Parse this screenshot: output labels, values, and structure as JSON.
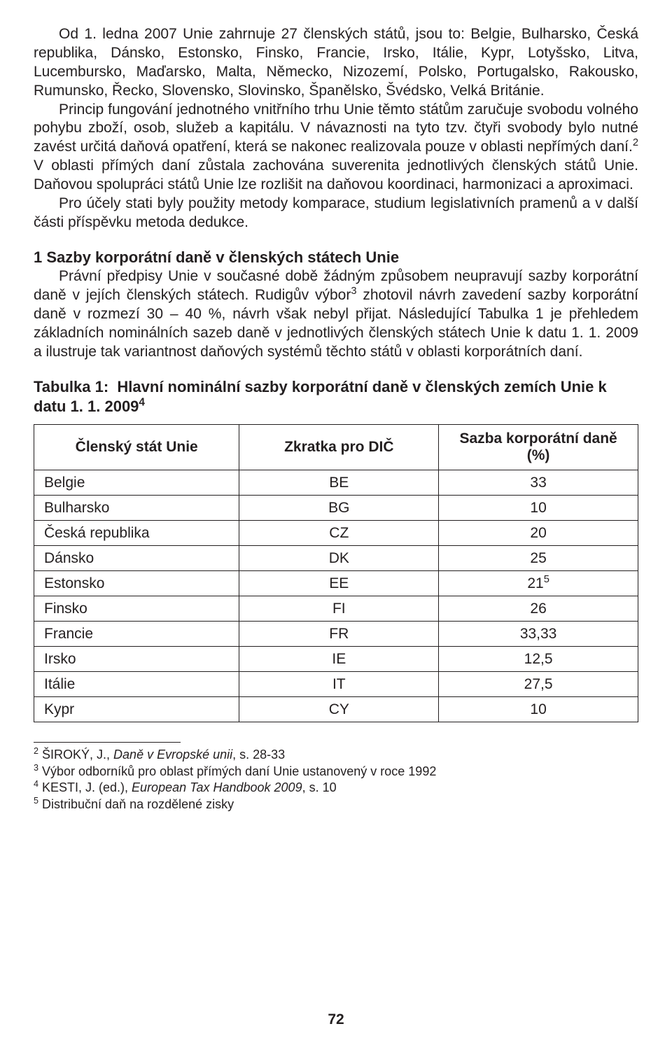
{
  "body": {
    "p1": "Od 1. ledna 2007 Unie zahrnuje 27 členských států, jsou to: Belgie, Bulharsko, Česká republika, Dánsko, Estonsko, Finsko, Francie, Irsko, Itálie, Kypr, Lotyšsko, Litva, Lucembursko, Maďarsko, Malta, Německo, Nizozemí, Polsko, Portugalsko, Rakousko, Rumunsko, Řecko, Slovensko, Slovinsko, Španělsko, Švédsko, Velká Británie.",
    "p2a": "Princip fungování jednotného vnitřního trhu Unie těmto státům zaručuje svobodu volného pohybu zboží, osob, služeb a kapitálu. V návaznosti na tyto tzv. čtyři svobody bylo nutné zavést určitá daňová opatření, která se nakonec realizovala pouze v oblasti nepřímých daní.",
    "p2b": " V oblasti přímých daní zůstala zachována suverenita jednotlivých členských států Unie. Daňovou spolupráci států Unie lze rozlišit na daňovou koordinaci, harmonizaci a aproximaci.",
    "p3": "Pro účely stati byly použity metody komparace, studium legislativních pramenů a v další části příspěvku metoda dedukce."
  },
  "section1": {
    "heading": "1 Sazby korporátní daně v členských státech Unie",
    "p1a": "Právní předpisy Unie v současné době žádným způsobem neupravují sazby korporátní daně v jejích členských státech. Rudigův výbor",
    "p1b": " zhotovil návrh zavedení sazby korporátní daně v rozmezí 30 – 40 %, návrh však nebyl přijat. Následující Tabulka 1 je přehledem základních nominálních sazeb daně v jednotlivých členských státech Unie k datu 1. 1. 2009 a ilustruje tak variantnost daňových systémů těchto států v oblasti korporátních daní."
  },
  "table": {
    "title_prefix": "Tabulka 1:",
    "title_rest": "Hlavní nominální sazby korporátní daně v členských zemích Unie k datu 1. 1. 2009",
    "columns": [
      "Členský stát Unie",
      "Zkratka pro DIČ",
      "Sazba korporátní daně (%)"
    ],
    "rows": [
      {
        "state": "Belgie",
        "dic": "BE",
        "rate": "33"
      },
      {
        "state": "Bulharsko",
        "dic": "BG",
        "rate": "10"
      },
      {
        "state": "Česká republika",
        "dic": "CZ",
        "rate": "20"
      },
      {
        "state": "Dánsko",
        "dic": "DK",
        "rate": "25"
      },
      {
        "state": "Estonsko",
        "dic": "EE",
        "rate": "21",
        "rate_sup": "5"
      },
      {
        "state": "Finsko",
        "dic": "FI",
        "rate": "26"
      },
      {
        "state": "Francie",
        "dic": "FR",
        "rate": "33,33"
      },
      {
        "state": "Irsko",
        "dic": "IE",
        "rate": "12,5"
      },
      {
        "state": "Itálie",
        "dic": "IT",
        "rate": "27,5"
      },
      {
        "state": "Kypr",
        "dic": "CY",
        "rate": "10"
      }
    ]
  },
  "footnotes": {
    "f2_num": "2",
    "f2_a": " ŠIROKÝ, J., ",
    "f2_i": "Daně v Evropské unii",
    "f2_b": ", s. 28-33",
    "f3_num": "3",
    "f3": " Výbor odborníků pro oblast přímých daní Unie ustanovený v roce 1992",
    "f4_num": "4",
    "f4_a": " KESTI, J. (ed.), ",
    "f4_i": "European Tax Handbook 2009",
    "f4_b": ", s. 10",
    "f5_num": "5",
    "f5": " Distribuční daň na rozdělené zisky"
  },
  "sup": {
    "n2": "2",
    "n3": "3",
    "n4": "4"
  },
  "page_number": "72"
}
